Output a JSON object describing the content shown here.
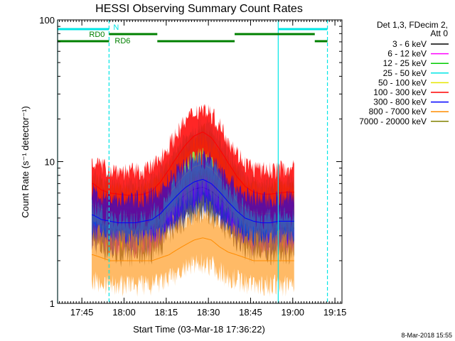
{
  "chart_data": {
    "type": "line",
    "title": "HESSI Observing Summary Count Rates",
    "xlabel": "Start Time (03-Mar-18 17:36:22)",
    "ylabel": "Count Rate (s⁻¹ detector⁻¹)",
    "y_scale": "log",
    "ylim": [
      1,
      100
    ],
    "xlim": [
      "17:36:22",
      "19:17:30"
    ],
    "x_ticks": [
      "17:45",
      "18:00",
      "18:15",
      "18:30",
      "18:45",
      "19:00",
      "19:15"
    ],
    "y_ticks": [
      1,
      10,
      100
    ],
    "y_tick_labels": [
      "1",
      "10",
      "100"
    ],
    "legend_title": "Det 1,3, FDecim 2,\nAtt 0",
    "legend_position": "right",
    "x": [
      "17:49",
      "17:52",
      "17:55",
      "17:58",
      "18:01",
      "18:04",
      "18:07",
      "18:10",
      "18:13",
      "18:16",
      "18:19",
      "18:22",
      "18:25",
      "18:28",
      "18:31",
      "18:34",
      "18:37",
      "18:40",
      "18:43",
      "18:46",
      "18:49",
      "18:52",
      "18:55",
      "18:58"
    ],
    "series": [
      {
        "name": "3 - 6 keV",
        "color": "#000000",
        "values": [
          4.0,
          3.6,
          3.4,
          3.3,
          3.2,
          3.2,
          3.3,
          3.4,
          3.8,
          4.5,
          5.2,
          5.9,
          6.4,
          6.6,
          6.2,
          5.5,
          4.7,
          4.1,
          3.6,
          3.4,
          3.3,
          3.3,
          3.4,
          3.4
        ]
      },
      {
        "name": "6 - 12 keV",
        "color": "#ff00ff",
        "values": [
          4.5,
          4.1,
          3.9,
          3.8,
          3.7,
          3.7,
          3.8,
          3.9,
          4.4,
          5.3,
          6.4,
          7.6,
          8.6,
          9.0,
          8.3,
          7.0,
          5.8,
          4.8,
          4.2,
          3.9,
          3.8,
          3.8,
          3.9,
          3.9
        ]
      },
      {
        "name": "12 - 25 keV",
        "color": "#00cc00",
        "values": [
          5.2,
          4.7,
          4.5,
          4.4,
          4.3,
          4.3,
          4.4,
          4.6,
          5.2,
          6.3,
          7.7,
          9.2,
          10.6,
          11.2,
          10.3,
          8.6,
          7.0,
          5.7,
          4.9,
          4.5,
          4.4,
          4.4,
          4.5,
          4.6
        ]
      },
      {
        "name": "25 - 50 keV",
        "color": "#00e6e6",
        "values": [
          5.6,
          5.1,
          4.9,
          4.8,
          4.7,
          4.7,
          4.8,
          5.0,
          5.7,
          6.9,
          8.5,
          10.3,
          12.0,
          12.8,
          11.7,
          9.6,
          7.7,
          6.2,
          5.3,
          4.9,
          4.8,
          4.8,
          4.9,
          5.0
        ]
      },
      {
        "name": "50 - 100 keV",
        "color": "#e6e600",
        "values": [
          5.0,
          4.6,
          4.4,
          4.3,
          4.2,
          4.2,
          4.3,
          4.5,
          5.0,
          5.9,
          7.0,
          8.2,
          9.2,
          9.6,
          8.9,
          7.6,
          6.4,
          5.3,
          4.7,
          4.4,
          4.3,
          4.3,
          4.4,
          4.5
        ]
      },
      {
        "name": "100 - 300 keV",
        "color": "#ff0000",
        "values": [
          7.0,
          6.3,
          6.0,
          5.9,
          5.8,
          5.8,
          5.9,
          6.2,
          7.2,
          8.8,
          10.9,
          13.2,
          15.2,
          16.2,
          14.8,
          12.2,
          9.8,
          7.9,
          6.7,
          6.1,
          5.9,
          5.9,
          6.0,
          6.1
        ]
      },
      {
        "name": "300 - 800 keV",
        "color": "#0000ff",
        "values": [
          4.2,
          3.9,
          3.8,
          3.7,
          3.7,
          3.7,
          3.8,
          3.9,
          4.3,
          5.0,
          5.8,
          6.6,
          7.2,
          7.5,
          7.0,
          6.1,
          5.2,
          4.5,
          4.0,
          3.8,
          3.7,
          3.7,
          3.8,
          3.8
        ]
      },
      {
        "name": "800 - 7000 keV",
        "color": "#ff8c00",
        "values": [
          2.2,
          2.1,
          2.0,
          2.0,
          2.0,
          2.0,
          2.0,
          2.0,
          2.1,
          2.2,
          2.4,
          2.6,
          2.8,
          2.9,
          2.8,
          2.5,
          2.3,
          2.2,
          2.1,
          2.0,
          2.0,
          2.0,
          2.0,
          2.0
        ]
      },
      {
        "name": "7000 - 20000 keV",
        "color": "#808000",
        "values": [
          null,
          null,
          null,
          null,
          null,
          null,
          null,
          null,
          null,
          null,
          null,
          null,
          null,
          null,
          null,
          null,
          null,
          null,
          null,
          null,
          null,
          null,
          null,
          null
        ]
      }
    ],
    "data_window": [
      "17:48:30",
      "19:00:30"
    ],
    "vertical_markers": [
      {
        "time": "17:36:22",
        "color": "#00e6e6",
        "style": "solid"
      },
      {
        "time": "17:54:40",
        "color": "#00e6e6",
        "style": "dashed"
      },
      {
        "time": "18:54:50",
        "color": "#00e6e6",
        "style": "solid"
      },
      {
        "time": "19:12:20",
        "color": "#00e6e6",
        "style": "dashed"
      }
    ],
    "intervals": [
      {
        "label": "N",
        "color": "#00e6e6",
        "row": 1,
        "segments": [
          [
            "17:36:22",
            "17:54:40"
          ],
          [
            "18:54:50",
            "19:12:20"
          ]
        ]
      },
      {
        "label": "RD0",
        "color": "#008000",
        "row": 2,
        "segments": [
          [
            "17:54:40",
            "18:11:50"
          ],
          [
            "18:39:20",
            "19:07:50"
          ]
        ]
      },
      {
        "label": "RD6",
        "color": "#008000",
        "row": 3,
        "segments": [
          [
            "17:36:22",
            "17:54:40"
          ],
          [
            "18:11:50",
            "18:39:20"
          ],
          [
            "19:07:50",
            "19:12:20"
          ]
        ]
      }
    ],
    "footer": "8-Mar-2018 15:55"
  }
}
